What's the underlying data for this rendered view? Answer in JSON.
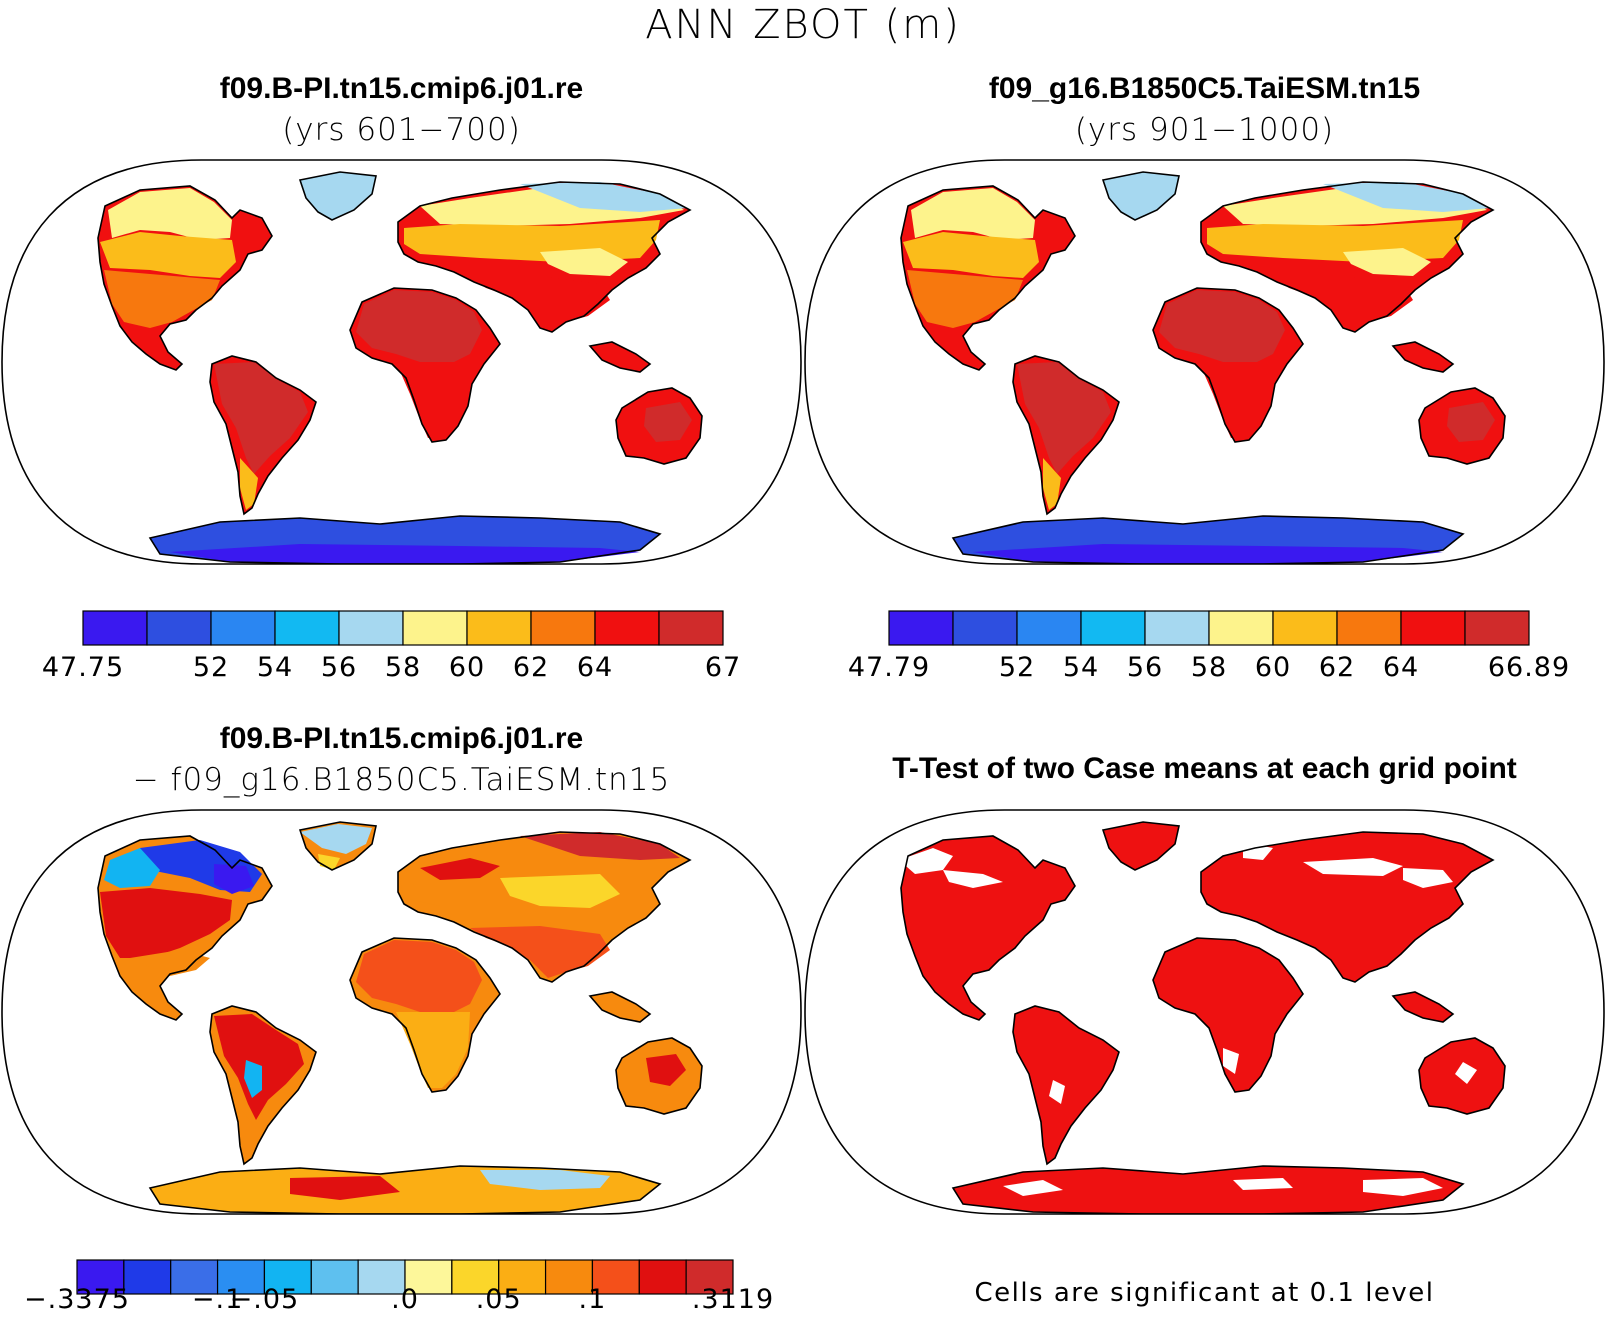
{
  "title": "ANN ZBOT (m)",
  "panels": [
    {
      "id": "p1",
      "case": "f09.B-PI.tn15.cmip6.j01.re",
      "subtitle": "(yrs 601−700)",
      "colors": [
        "#3a19f0",
        "#2e4fe0",
        "#2a86f2",
        "#12b9f2",
        "#a6d8f0",
        "#fdf38c",
        "#fbbc1a",
        "#f7780e",
        "#f01010",
        "#d02b2b"
      ],
      "labels": [
        {
          "text": "47.75",
          "pos": 0
        },
        {
          "text": "52",
          "pos": 2
        },
        {
          "text": "54",
          "pos": 3
        },
        {
          "text": "56",
          "pos": 4
        },
        {
          "text": "58",
          "pos": 5
        },
        {
          "text": "60",
          "pos": 6
        },
        {
          "text": "62",
          "pos": 7
        },
        {
          "text": "64",
          "pos": 8
        },
        {
          "text": "67",
          "pos": 10
        }
      ],
      "style": "mean"
    },
    {
      "id": "p2",
      "case": "f09_g16.B1850C5.TaiESM.tn15",
      "subtitle": "(yrs 901−1000)",
      "colors": [
        "#3a19f0",
        "#2e4fe0",
        "#2a86f2",
        "#12b9f2",
        "#a6d8f0",
        "#fdf38c",
        "#fbbc1a",
        "#f7780e",
        "#f01010",
        "#d02b2b"
      ],
      "labels": [
        {
          "text": "47.79",
          "pos": 0
        },
        {
          "text": "52",
          "pos": 2
        },
        {
          "text": "54",
          "pos": 3
        },
        {
          "text": "56",
          "pos": 4
        },
        {
          "text": "58",
          "pos": 5
        },
        {
          "text": "60",
          "pos": 6
        },
        {
          "text": "62",
          "pos": 7
        },
        {
          "text": "64",
          "pos": 8
        },
        {
          "text": "66.89",
          "pos": 10
        }
      ],
      "style": "mean"
    },
    {
      "id": "p3",
      "case": "f09.B-PI.tn15.cmip6.j01.re",
      "subtitle": "− f09_g16.B1850C5.TaiESM.tn15",
      "colors": [
        "#3a19f0",
        "#1f3ae8",
        "#3a6ee8",
        "#2a8ef2",
        "#12b4f2",
        "#5ec0ef",
        "#a6d8f0",
        "#fdf79a",
        "#fbd62a",
        "#fbae14",
        "#f78a0e",
        "#f4501a",
        "#e01010",
        "#d02b2b"
      ],
      "labels": [
        {
          "text": "−.3375",
          "pos": 0
        },
        {
          "text": "−.1",
          "pos": 3
        },
        {
          "text": "−.05",
          "pos": 4
        },
        {
          "text": ".0",
          "pos": 7
        },
        {
          "text": ".05",
          "pos": 9
        },
        {
          "text": ".1",
          "pos": 11
        },
        {
          "text": ".3119",
          "pos": 14
        }
      ],
      "style": "diff"
    },
    {
      "id": "p4",
      "case": "T-Test of two Case means at each grid point",
      "subtitle": "",
      "note": "Cells are significant at 0.1 level",
      "style": "ttest"
    }
  ],
  "map_colors": {
    "outline": "#000000",
    "ttest_fill": "#ee1111"
  }
}
